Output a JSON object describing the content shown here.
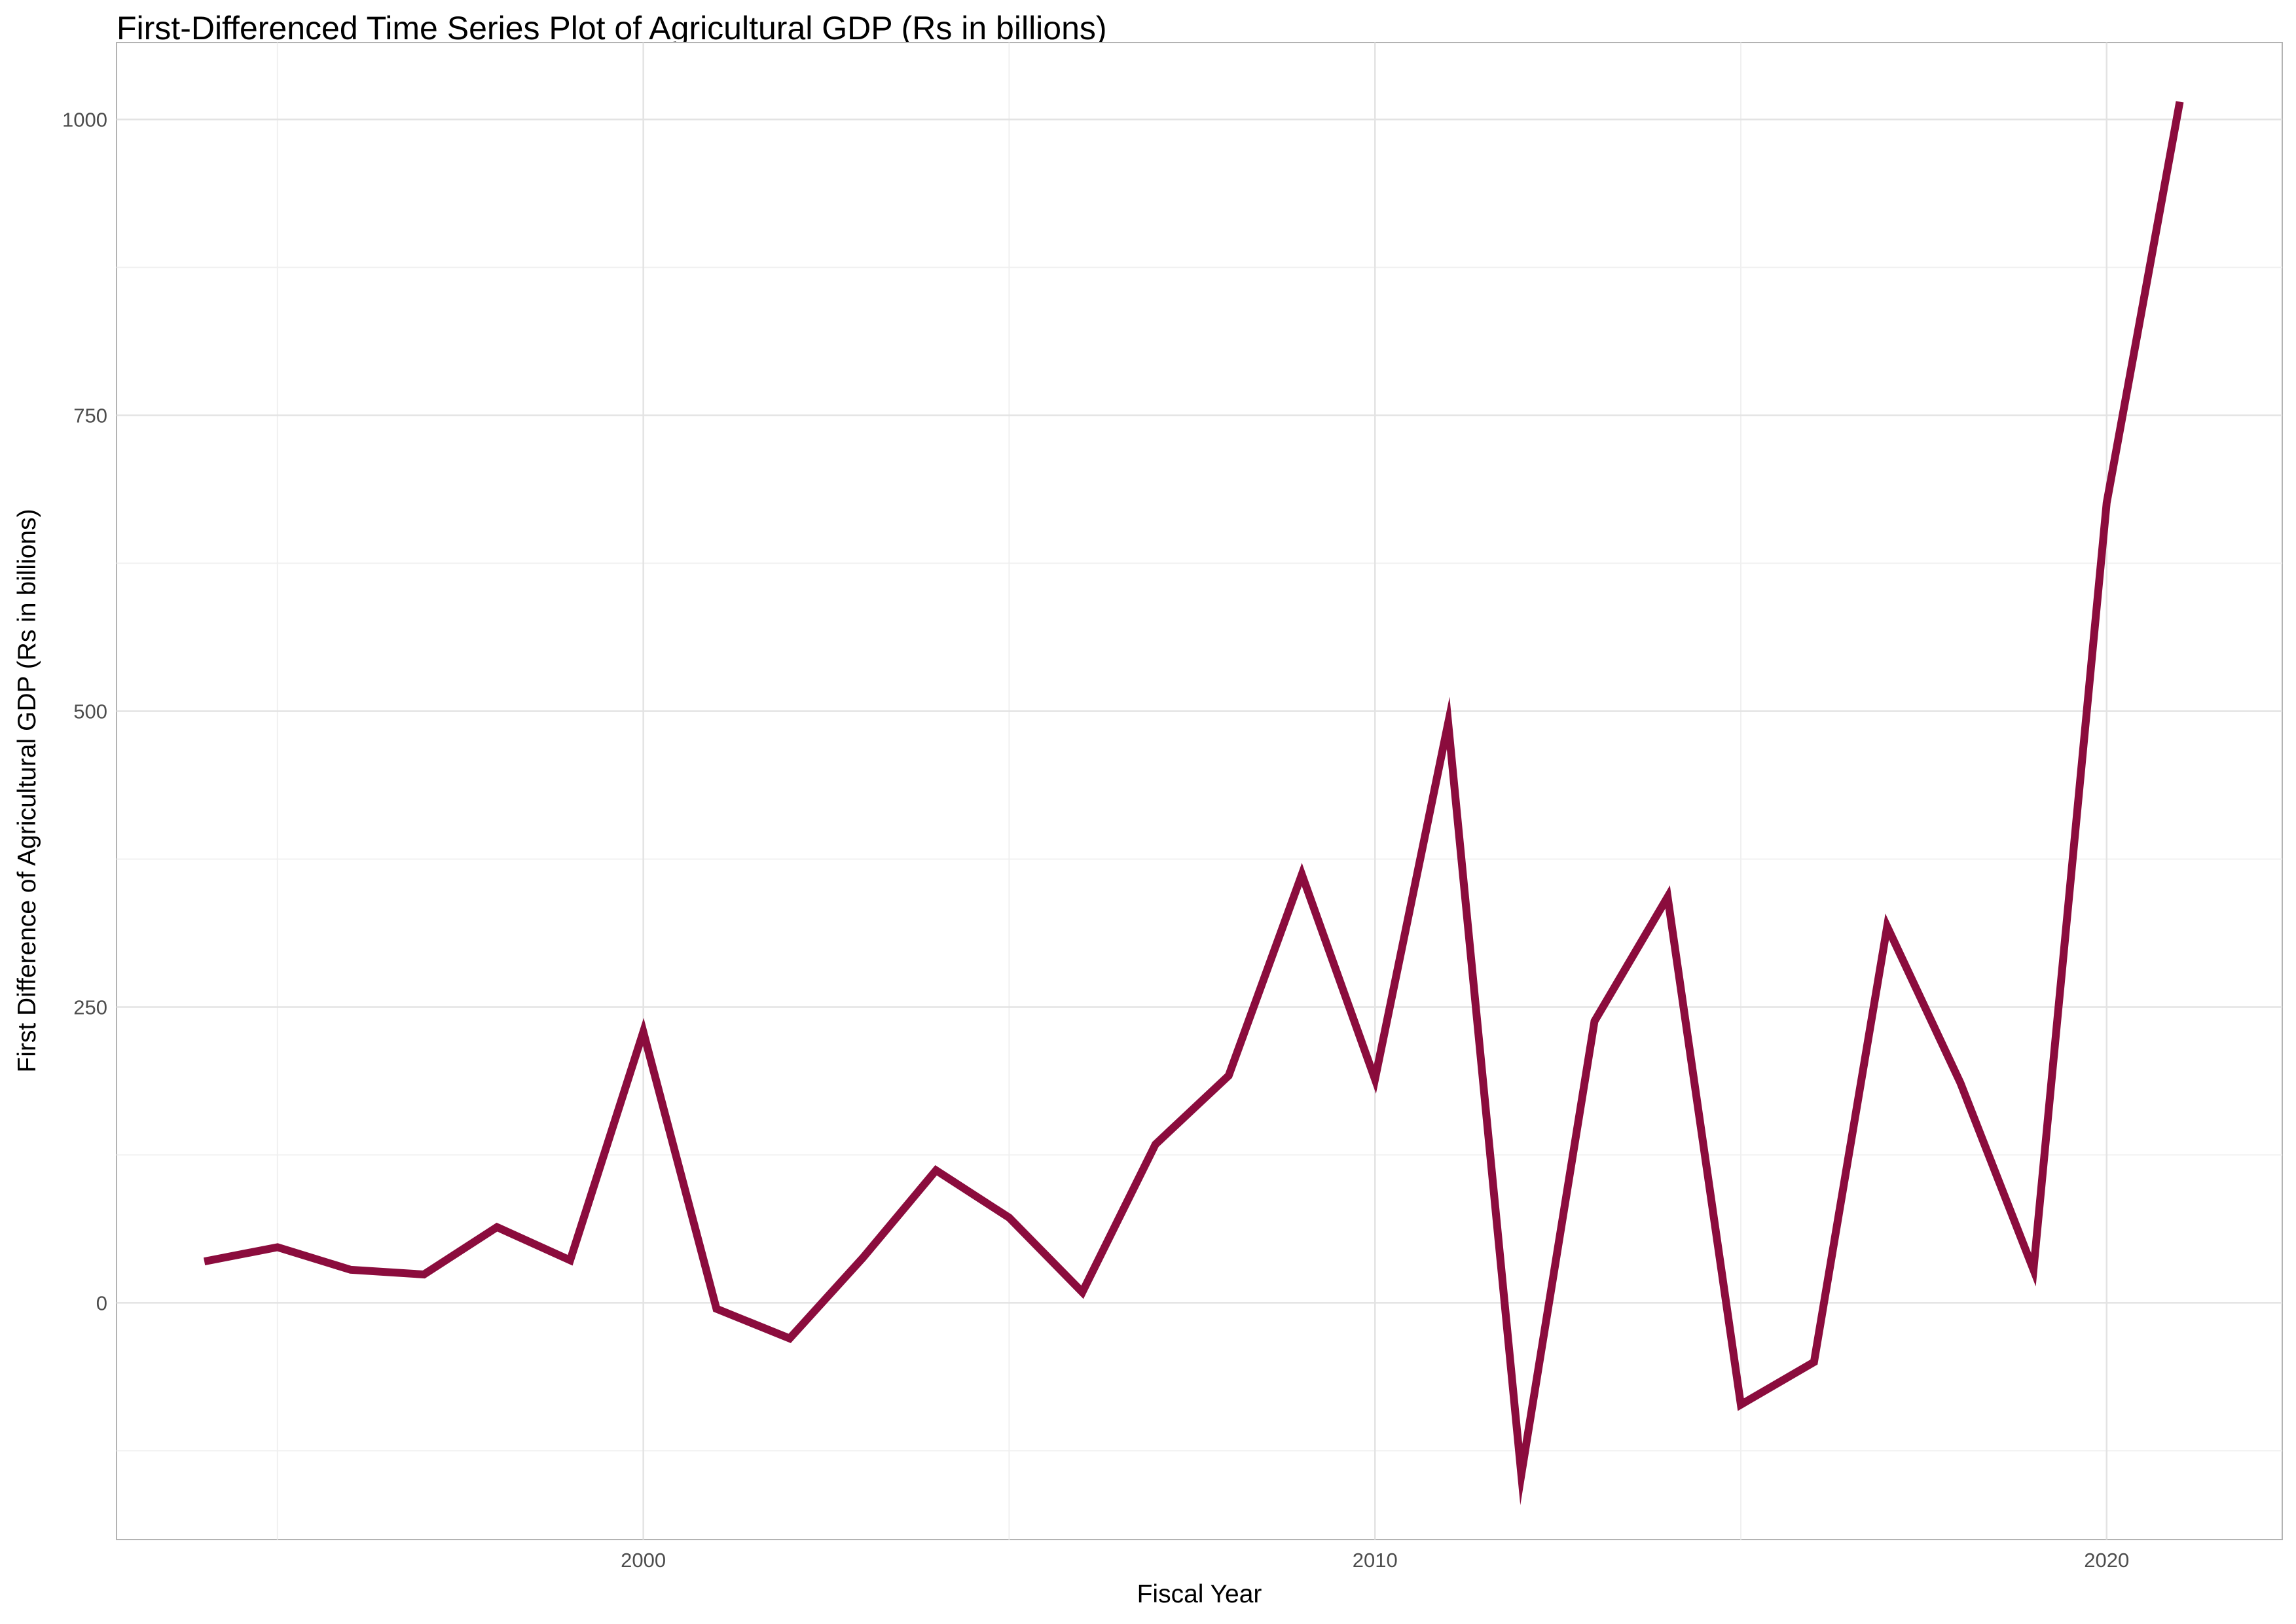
{
  "chart_data": {
    "type": "line",
    "title": "First-Differenced Time Series Plot of Agricultural GDP (Rs in billions)",
    "xlabel": "Fiscal Year",
    "ylabel": "First Difference of Agricultural GDP (Rs in billions)",
    "xlim": [
      1992.8,
      2022.4
    ],
    "ylim": [
      -200,
      1065
    ],
    "x_ticks": [
      2000,
      2010,
      2020
    ],
    "y_ticks": [
      0,
      250,
      500,
      750,
      1000
    ],
    "grid": true,
    "line_color": "#8b0c3d",
    "series": [
      {
        "x": [
          1994,
          1995,
          1996,
          1997,
          1998,
          1999,
          2000,
          2001,
          2002,
          2003,
          2004,
          2005,
          2006,
          2007,
          2008,
          2009,
          2010,
          2011,
          2012,
          2013,
          2014,
          2015,
          2016,
          2017,
          2018,
          2019,
          2020,
          2021
        ],
        "values": [
          35,
          47,
          28,
          24,
          64,
          36,
          229,
          -5,
          -30,
          38,
          112,
          72,
          9,
          134,
          192,
          362,
          189,
          490,
          -145,
          238,
          343,
          -86,
          -50,
          318,
          186,
          28,
          676,
          1015
        ]
      }
    ]
  }
}
